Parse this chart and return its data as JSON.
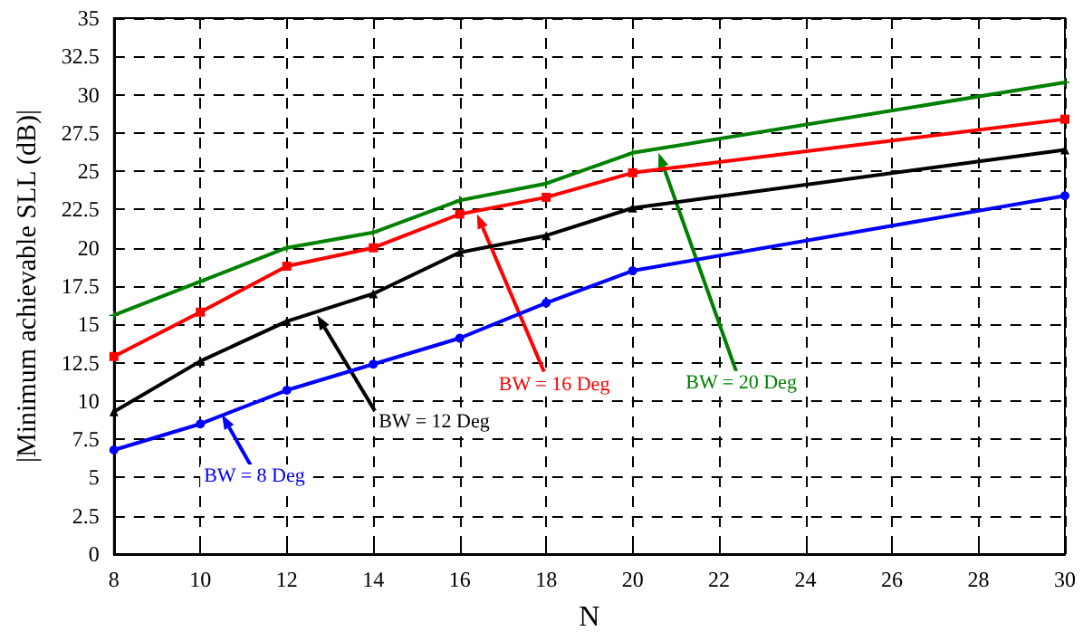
{
  "chart_data": {
    "type": "line",
    "xlabel": "N",
    "ylabel": "|Minimum achievable SLL (dB)|",
    "x": [
      8,
      10,
      12,
      14,
      16,
      18,
      20,
      30
    ],
    "series": [
      {
        "color": "#0000ff",
        "marker": "circle",
        "values": [
          6.8,
          8.5,
          10.7,
          12.4,
          14.1,
          16.4,
          18.5,
          23.4
        ]
      },
      {
        "color": "#000000",
        "marker": "triangle",
        "values": [
          9.3,
          12.6,
          15.2,
          17,
          19.7,
          20.8,
          22.6,
          26.4
        ]
      },
      {
        "color": "#ff0000",
        "marker": "square",
        "values": [
          12.9,
          15.8,
          18.8,
          20,
          22.2,
          23.3,
          24.9,
          28.4
        ]
      },
      {
        "color": "#008000",
        "marker": "cross",
        "values": [
          15.6,
          17.8,
          20,
          21,
          23.1,
          24.2,
          26.2,
          30.8
        ]
      }
    ],
    "annotations": [
      {
        "text": "BW = 8 Deg",
        "x": 10.5,
        "y": 9.1
      },
      {
        "text": "BW = 12 Deg",
        "x": 12.7,
        "y": 15.6
      },
      {
        "text": "BW = 16 Deg",
        "x": 16.4,
        "y": 22.2
      },
      {
        "text": "BW = 20 Deg",
        "x": 20.6,
        "y": 26.2
      }
    ],
    "xlim": [
      8,
      30
    ],
    "xticks": [
      8,
      10,
      12,
      14,
      16,
      18,
      20,
      22,
      24,
      26,
      28,
      30
    ],
    "ylim": [
      0,
      35
    ],
    "yticks": [
      0,
      2.5,
      5,
      7.5,
      10,
      12.5,
      15,
      17.5,
      20,
      22.5,
      25,
      27.5,
      30,
      32.5,
      35
    ],
    "grid": true,
    "line_style": "solid"
  }
}
